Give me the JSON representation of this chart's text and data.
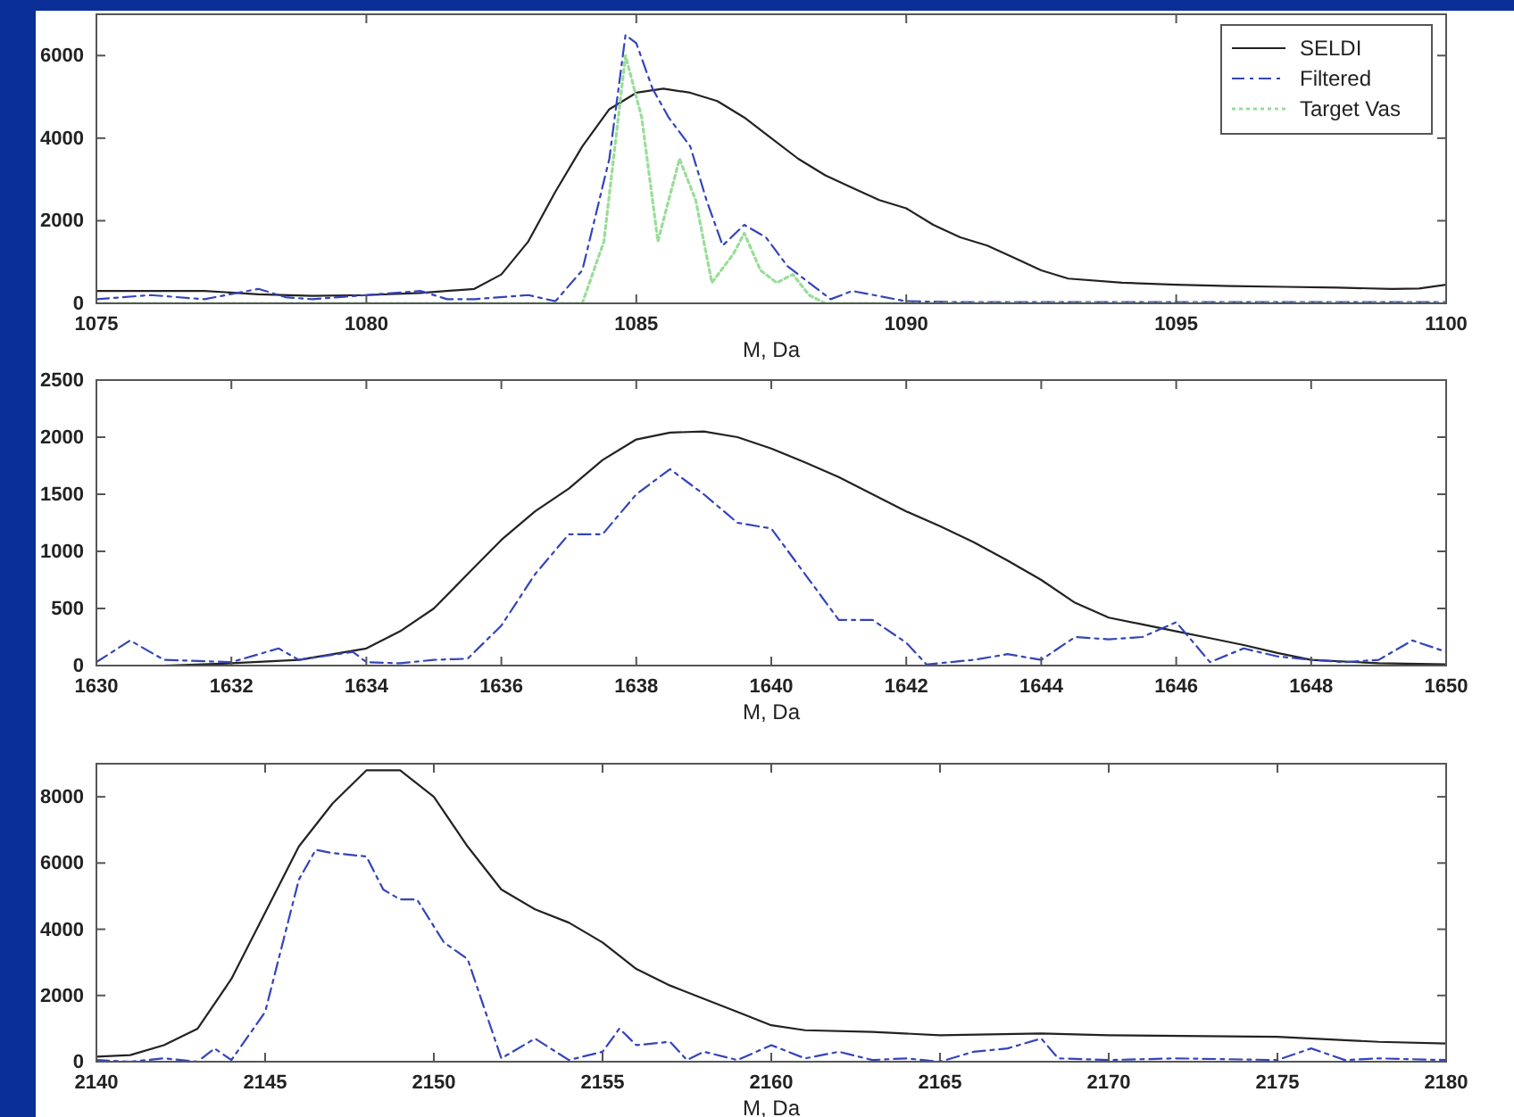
{
  "chart_data": [
    {
      "type": "line",
      "xlabel": "M, Da",
      "xlim": [
        1075,
        1100
      ],
      "xticks": [
        1075,
        1080,
        1085,
        1090,
        1095,
        1100
      ],
      "ylim": [
        0,
        7000
      ],
      "yticks": [
        0,
        2000,
        4000,
        6000
      ],
      "legend": "top right",
      "grid": false,
      "series": [
        {
          "name": "SELDI",
          "color": "#222222",
          "line_style": "solid",
          "x": [
            1075,
            1076,
            1077,
            1078,
            1079,
            1080,
            1081,
            1082,
            1082.5,
            1083,
            1083.5,
            1084,
            1084.5,
            1085,
            1085.5,
            1086,
            1086.5,
            1087,
            1087.5,
            1088,
            1088.5,
            1089,
            1089.5,
            1090,
            1090.5,
            1091,
            1091.5,
            1092,
            1092.5,
            1093,
            1094,
            1095,
            1096,
            1097,
            1098,
            1099,
            1099.5,
            1100
          ],
          "values": [
            300,
            300,
            300,
            220,
            180,
            200,
            250,
            350,
            700,
            1500,
            2700,
            3800,
            4700,
            5100,
            5200,
            5100,
            4900,
            4500,
            4000,
            3500,
            3100,
            2800,
            2500,
            2300,
            1900,
            1600,
            1400,
            1100,
            800,
            600,
            500,
            450,
            420,
            400,
            380,
            350,
            360,
            450
          ]
        },
        {
          "name": "Filtered",
          "color": "#3344bb",
          "line_style": "dashed",
          "x": [
            1075,
            1076,
            1077,
            1078,
            1078.5,
            1079,
            1080,
            1081,
            1081.5,
            1082,
            1083,
            1083.5,
            1084,
            1084.5,
            1084.8,
            1085,
            1085.3,
            1085.6,
            1086,
            1086.3,
            1086.6,
            1087,
            1087.4,
            1087.8,
            1088.2,
            1088.6,
            1089,
            1089.4,
            1090,
            1091,
            1095,
            1100
          ],
          "values": [
            100,
            200,
            100,
            350,
            150,
            100,
            200,
            300,
            100,
            100,
            200,
            50,
            800,
            3500,
            6500,
            6300,
            5200,
            4500,
            3800,
            2500,
            1400,
            1900,
            1600,
            900,
            500,
            100,
            300,
            200,
            50,
            30,
            30,
            30
          ]
        },
        {
          "name": "Target Vas",
          "color": "#99dd99",
          "line_style": "dotted",
          "x": [
            1075,
            1084,
            1084.4,
            1084.8,
            1085.1,
            1085.4,
            1085.8,
            1086.1,
            1086.4,
            1086.8,
            1087,
            1087.3,
            1087.6,
            1087.9,
            1088.2,
            1088.5,
            1100
          ],
          "values": [
            0,
            0,
            1500,
            6000,
            4500,
            1500,
            3500,
            2500,
            500,
            1200,
            1700,
            800,
            500,
            700,
            200,
            0,
            0
          ]
        }
      ]
    },
    {
      "type": "line",
      "xlabel": "M, Da",
      "xlim": [
        1630,
        1650
      ],
      "xticks": [
        1630,
        1632,
        1634,
        1636,
        1638,
        1640,
        1642,
        1644,
        1646,
        1648,
        1650
      ],
      "ylim": [
        0,
        2500
      ],
      "yticks": [
        0,
        500,
        1000,
        1500,
        2000,
        2500
      ],
      "legend": false,
      "grid": false,
      "series": [
        {
          "color": "#222222",
          "line_style": "solid",
          "x": [
            1630,
            1631,
            1632,
            1633,
            1634,
            1634.5,
            1635,
            1635.5,
            1636,
            1636.5,
            1637,
            1637.5,
            1638,
            1638.5,
            1639,
            1639.5,
            1640,
            1640.5,
            1641,
            1641.5,
            1642,
            1642.5,
            1643,
            1643.5,
            1644,
            1644.5,
            1645,
            1645.5,
            1646,
            1646.5,
            1647,
            1647.5,
            1648,
            1649,
            1650
          ],
          "values": [
            0,
            0,
            20,
            50,
            150,
            300,
            500,
            800,
            1100,
            1350,
            1550,
            1800,
            1980,
            2040,
            2050,
            2000,
            1900,
            1780,
            1650,
            1500,
            1350,
            1220,
            1080,
            920,
            750,
            550,
            420,
            360,
            300,
            240,
            180,
            110,
            50,
            20,
            10
          ]
        },
        {
          "color": "#3344bb",
          "line_style": "dashed",
          "x": [
            1630,
            1630.5,
            1631,
            1632,
            1632.7,
            1633,
            1633.8,
            1634,
            1634.5,
            1635,
            1635.5,
            1636,
            1636.5,
            1637,
            1637.5,
            1638,
            1638.5,
            1639,
            1639.5,
            1640,
            1640.5,
            1641,
            1641.5,
            1642,
            1642.3,
            1643,
            1643.5,
            1644,
            1644.5,
            1645,
            1645.5,
            1646,
            1646.5,
            1647,
            1647.5,
            1648,
            1648.5,
            1649,
            1649.5,
            1650
          ],
          "values": [
            30,
            220,
            50,
            30,
            150,
            50,
            120,
            30,
            20,
            50,
            60,
            350,
            800,
            1150,
            1150,
            1500,
            1720,
            1500,
            1250,
            1200,
            800,
            400,
            400,
            200,
            10,
            50,
            100,
            50,
            250,
            230,
            250,
            380,
            30,
            150,
            80,
            50,
            30,
            50,
            220,
            120
          ]
        }
      ]
    },
    {
      "type": "line",
      "xlabel": "M, Da",
      "xlim": [
        2140,
        2180
      ],
      "xticks": [
        2140,
        2145,
        2150,
        2155,
        2160,
        2165,
        2170,
        2175,
        2180
      ],
      "ylim": [
        0,
        9000
      ],
      "yticks": [
        0,
        2000,
        4000,
        6000,
        8000
      ],
      "legend": false,
      "grid": false,
      "series": [
        {
          "color": "#222222",
          "line_style": "solid",
          "x": [
            2140,
            2141,
            2142,
            2143,
            2144,
            2145,
            2146,
            2147,
            2148,
            2149,
            2150,
            2151,
            2152,
            2153,
            2154,
            2155,
            2156,
            2157,
            2158,
            2159,
            2160,
            2161,
            2163,
            2165,
            2168,
            2170,
            2175,
            2178,
            2180
          ],
          "values": [
            150,
            200,
            500,
            1000,
            2500,
            4500,
            6500,
            7800,
            8800,
            8800,
            8000,
            6500,
            5200,
            4600,
            4200,
            3600,
            2800,
            2300,
            1900,
            1500,
            1100,
            950,
            900,
            800,
            850,
            800,
            750,
            600,
            550
          ]
        },
        {
          "color": "#3344bb",
          "line_style": "dashed",
          "x": [
            2140,
            2141,
            2142,
            2143,
            2143.5,
            2144,
            2145,
            2146,
            2146.5,
            2147,
            2148,
            2148.5,
            2149,
            2149.5,
            2150.3,
            2151,
            2152,
            2153,
            2154,
            2155,
            2155.5,
            2156,
            2157,
            2157.5,
            2158,
            2159,
            2160,
            2161,
            2162,
            2163,
            2164,
            2165,
            2166,
            2167,
            2168,
            2168.5,
            2170,
            2172,
            2175,
            2176,
            2177,
            2178,
            2180
          ],
          "values": [
            50,
            0,
            100,
            0,
            400,
            50,
            1500,
            5500,
            6400,
            6300,
            6200,
            5200,
            4900,
            4900,
            3600,
            3100,
            100,
            700,
            50,
            300,
            1000,
            500,
            600,
            50,
            300,
            50,
            500,
            100,
            300,
            50,
            100,
            0,
            300,
            400,
            700,
            100,
            50,
            100,
            50,
            400,
            50,
            100,
            50
          ]
        }
      ]
    }
  ]
}
